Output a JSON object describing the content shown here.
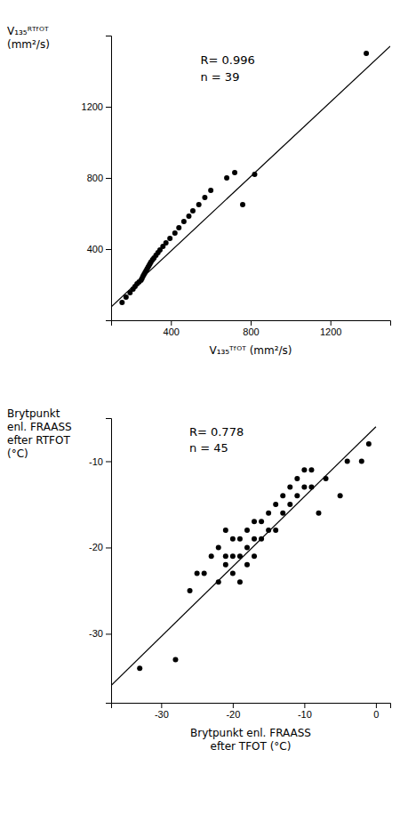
{
  "chart_data": [
    {
      "type": "scatter",
      "xlabel": "V₁₃₅ᵀᶠᴼᵀ (mm²/s)",
      "ylabel": [
        "V₁₃₅ᴿᵀᶠᴼᵀ",
        "(mm²/s)"
      ],
      "annotation": "R= 0.996\nn = 39",
      "series": [
        {
          "type": "scatter",
          "color": "#000000",
          "x": [
            155,
            175,
            195,
            210,
            220,
            230,
            240,
            250,
            255,
            260,
            265,
            270,
            275,
            280,
            285,
            290,
            295,
            300,
            308,
            315,
            325,
            335,
            345,
            360,
            375,
            395,
            420,
            440,
            465,
            490,
            510,
            540,
            570,
            600,
            680,
            720,
            760,
            820,
            1380
          ],
          "values": [
            100,
            130,
            155,
            175,
            190,
            205,
            215,
            225,
            235,
            248,
            258,
            268,
            278,
            288,
            298,
            308,
            318,
            328,
            340,
            350,
            365,
            380,
            395,
            415,
            435,
            460,
            490,
            520,
            555,
            585,
            615,
            650,
            690,
            730,
            800,
            830,
            650,
            820,
            1500
          ]
        },
        {
          "type": "line",
          "color": "#000000",
          "x": [
            100,
            1500
          ],
          "values": [
            75,
            1540
          ]
        }
      ],
      "xlim": [
        100,
        1500
      ],
      "ylim": [
        0,
        1600
      ],
      "xticks": [
        400,
        800,
        1200
      ],
      "yticks": [
        400,
        800,
        1200
      ]
    },
    {
      "type": "scatter",
      "xlabel": "Brytpunkt enl. FRAASS\nefter TFOT (°C)",
      "ylabel": [
        "Brytpunkt",
        "enl. FRAASS",
        "efter RTFOT",
        "(°C)"
      ],
      "annotation": "R= 0.778\nn = 45",
      "series": [
        {
          "type": "scatter",
          "color": "#000000",
          "x": [
            -33,
            -28,
            -26,
            -25,
            -24,
            -23,
            -22,
            -22,
            -21,
            -21,
            -21,
            -20,
            -20,
            -20,
            -19,
            -19,
            -19,
            -18,
            -18,
            -18,
            -17,
            -17,
            -17,
            -16,
            -16,
            -15,
            -15,
            -14,
            -14,
            -13,
            -13,
            -12,
            -12,
            -11,
            -11,
            -10,
            -10,
            -9,
            -9,
            -8,
            -7,
            -5,
            -4,
            -2,
            -1
          ],
          "values": [
            -34,
            -33,
            -25,
            -23,
            -23,
            -21,
            -24,
            -20,
            -22,
            -21,
            -18,
            -23,
            -21,
            -19,
            -24,
            -21,
            -19,
            -22,
            -20,
            -18,
            -21,
            -19,
            -17,
            -19,
            -17,
            -18,
            -16,
            -18,
            -15,
            -16,
            -14,
            -15,
            -13,
            -14,
            -12,
            -13,
            -11,
            -13,
            -11,
            -16,
            -12,
            -14,
            -10,
            -10,
            -8
          ]
        },
        {
          "type": "line",
          "color": "#000000",
          "x": [
            -37,
            0
          ],
          "values": [
            -36,
            -6
          ]
        }
      ],
      "xlim": [
        -37,
        2
      ],
      "ylim": [
        -38,
        -5
      ],
      "xticks": [
        -30,
        -20,
        -10,
        0
      ],
      "yticks": [
        -30,
        -20,
        -10
      ]
    }
  ]
}
